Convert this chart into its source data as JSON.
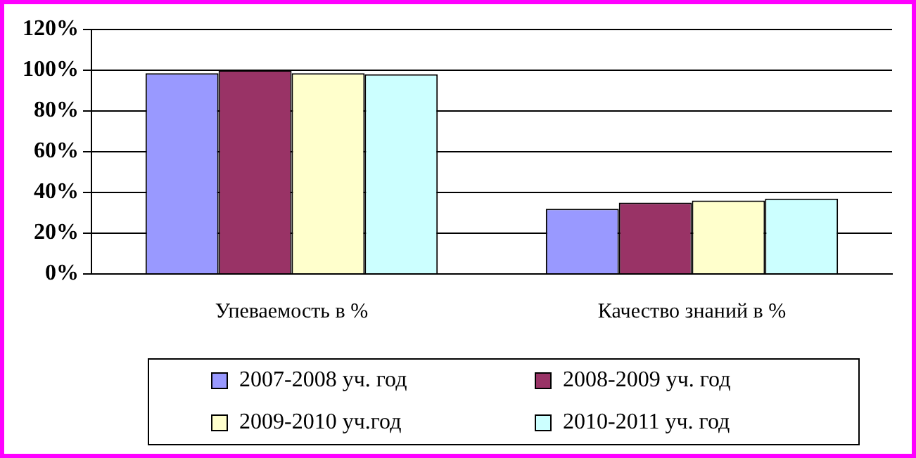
{
  "chart_data": {
    "type": "bar",
    "categories": [
      "Упеваемость в %",
      "Качество знаний в %"
    ],
    "series": [
      {
        "name": "2007-2008 уч. год",
        "color": "#9999ff",
        "values": [
          98.5,
          32
        ]
      },
      {
        "name": "2008-2009 уч. год",
        "color": "#993366",
        "values": [
          100,
          35
        ]
      },
      {
        "name": "2009-2010 уч.год",
        "color": "#ffffcc",
        "values": [
          98.5,
          36
        ]
      },
      {
        "name": "2010-2011 уч. год",
        "color": "#ccffff",
        "values": [
          98,
          37
        ]
      }
    ],
    "ylim": [
      0,
      120
    ],
    "yticks": [
      {
        "value": 0,
        "label": "0%"
      },
      {
        "value": 20,
        "label": "20%"
      },
      {
        "value": 40,
        "label": "40%"
      },
      {
        "value": 60,
        "label": "60%"
      },
      {
        "value": 80,
        "label": "80%"
      },
      {
        "value": 100,
        "label": "100%"
      },
      {
        "value": 120,
        "label": "120%"
      }
    ],
    "grid": "y",
    "legend": "bottom"
  }
}
